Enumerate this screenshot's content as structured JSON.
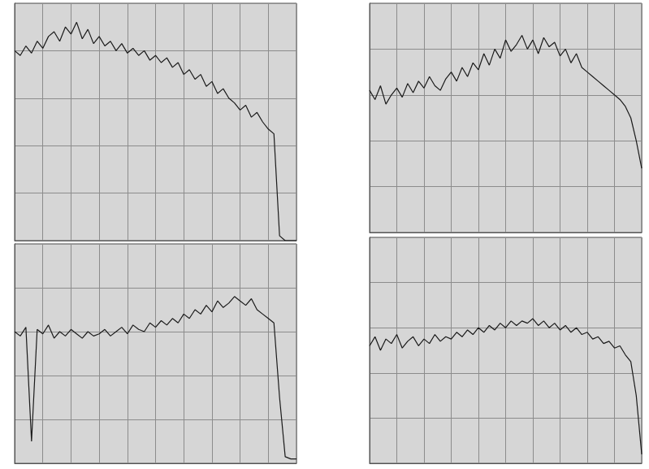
{
  "chart_data": [
    {
      "type": "line",
      "color": "#1a1a1a",
      "grid": true,
      "tick_labels": false,
      "xlim": [
        0,
        100
      ],
      "ylim": [
        0,
        100
      ],
      "xticks": [
        0,
        10,
        20,
        30,
        40,
        50,
        60,
        70,
        80,
        90,
        100
      ],
      "yticks": [
        0,
        20,
        40,
        60,
        80,
        100
      ],
      "x": [
        0,
        2,
        4,
        6,
        8,
        10,
        12,
        14,
        16,
        18,
        20,
        22,
        24,
        26,
        28,
        30,
        32,
        34,
        36,
        38,
        40,
        42,
        44,
        46,
        48,
        50,
        52,
        54,
        56,
        58,
        60,
        62,
        64,
        66,
        68,
        70,
        72,
        74,
        76,
        78,
        80,
        82,
        84,
        86,
        88,
        90,
        92,
        94,
        96,
        98,
        100
      ],
      "values": [
        80,
        78,
        82,
        79,
        84,
        81,
        86,
        88,
        84,
        90,
        87,
        92,
        85,
        89,
        83,
        86,
        82,
        84,
        80,
        83,
        79,
        81,
        78,
        80,
        76,
        78,
        75,
        77,
        73,
        75,
        70,
        72,
        68,
        70,
        65,
        67,
        62,
        64,
        60,
        58,
        55,
        57,
        52,
        54,
        50,
        47,
        45,
        2,
        0,
        0,
        0
      ]
    },
    {
      "type": "line",
      "color": "#1a1a1a",
      "grid": true,
      "tick_labels": false,
      "xlim": [
        0,
        100
      ],
      "ylim": [
        0,
        100
      ],
      "xticks": [
        0,
        10,
        20,
        30,
        40,
        50,
        60,
        70,
        80,
        90,
        100
      ],
      "yticks": [
        0,
        20,
        40,
        60,
        80,
        100
      ],
      "x": [
        0,
        2,
        4,
        6,
        8,
        10,
        12,
        14,
        16,
        18,
        20,
        22,
        24,
        26,
        28,
        30,
        32,
        34,
        36,
        38,
        40,
        42,
        44,
        46,
        48,
        50,
        52,
        54,
        56,
        58,
        60,
        62,
        64,
        66,
        68,
        70,
        72,
        74,
        76,
        78,
        80,
        82,
        84,
        86,
        88,
        90,
        92,
        94,
        96,
        98,
        100
      ],
      "values": [
        60,
        58,
        62,
        10,
        61,
        59,
        63,
        57,
        60,
        58,
        61,
        59,
        57,
        60,
        58,
        59,
        61,
        58,
        60,
        62,
        59,
        63,
        61,
        60,
        64,
        62,
        65,
        63,
        66,
        64,
        68,
        66,
        70,
        68,
        72,
        69,
        74,
        71,
        73,
        76,
        74,
        72,
        75,
        70,
        68,
        66,
        64,
        30,
        3,
        2,
        2
      ]
    },
    {
      "type": "line",
      "color": "#1a1a1a",
      "grid": true,
      "tick_labels": false,
      "xlim": [
        0,
        100
      ],
      "ylim": [
        0,
        100
      ],
      "xticks": [
        0,
        10,
        20,
        30,
        40,
        50,
        60,
        70,
        80,
        90,
        100
      ],
      "yticks": [
        0,
        20,
        40,
        60,
        80,
        100
      ],
      "x": [
        0,
        2,
        4,
        6,
        8,
        10,
        12,
        14,
        16,
        18,
        20,
        22,
        24,
        26,
        28,
        30,
        32,
        34,
        36,
        38,
        40,
        42,
        44,
        46,
        48,
        50,
        52,
        54,
        56,
        58,
        60,
        62,
        64,
        66,
        68,
        70,
        72,
        74,
        76,
        78,
        80,
        82,
        84,
        86,
        88,
        90,
        92,
        94,
        96,
        98,
        100
      ],
      "values": [
        62,
        58,
        64,
        56,
        60,
        63,
        59,
        65,
        61,
        66,
        63,
        68,
        64,
        62,
        67,
        70,
        66,
        72,
        68,
        74,
        71,
        78,
        73,
        80,
        76,
        84,
        79,
        82,
        86,
        80,
        84,
        78,
        85,
        81,
        83,
        77,
        80,
        74,
        78,
        72,
        70,
        68,
        66,
        64,
        62,
        60,
        58,
        55,
        50,
        40,
        28
      ]
    },
    {
      "type": "line",
      "color": "#1a1a1a",
      "grid": true,
      "tick_labels": false,
      "xlim": [
        0,
        100
      ],
      "ylim": [
        0,
        100
      ],
      "xticks": [
        0,
        10,
        20,
        30,
        40,
        50,
        60,
        70,
        80,
        90,
        100
      ],
      "yticks": [
        0,
        20,
        40,
        60,
        80,
        100
      ],
      "x": [
        0,
        2,
        4,
        6,
        8,
        10,
        12,
        14,
        16,
        18,
        20,
        22,
        24,
        26,
        28,
        30,
        32,
        34,
        36,
        38,
        40,
        42,
        44,
        46,
        48,
        50,
        52,
        54,
        56,
        58,
        60,
        62,
        64,
        66,
        68,
        70,
        72,
        74,
        76,
        78,
        80,
        82,
        84,
        86,
        88,
        90,
        92,
        94,
        96,
        98,
        100
      ],
      "values": [
        52,
        56,
        50,
        55,
        53,
        57,
        51,
        54,
        56,
        52,
        55,
        53,
        57,
        54,
        56,
        55,
        58,
        56,
        59,
        57,
        60,
        58,
        61,
        59,
        62,
        60,
        63,
        61,
        63,
        62,
        64,
        61,
        63,
        60,
        62,
        59,
        61,
        58,
        60,
        57,
        58,
        55,
        56,
        53,
        54,
        51,
        52,
        48,
        45,
        30,
        4
      ]
    }
  ]
}
